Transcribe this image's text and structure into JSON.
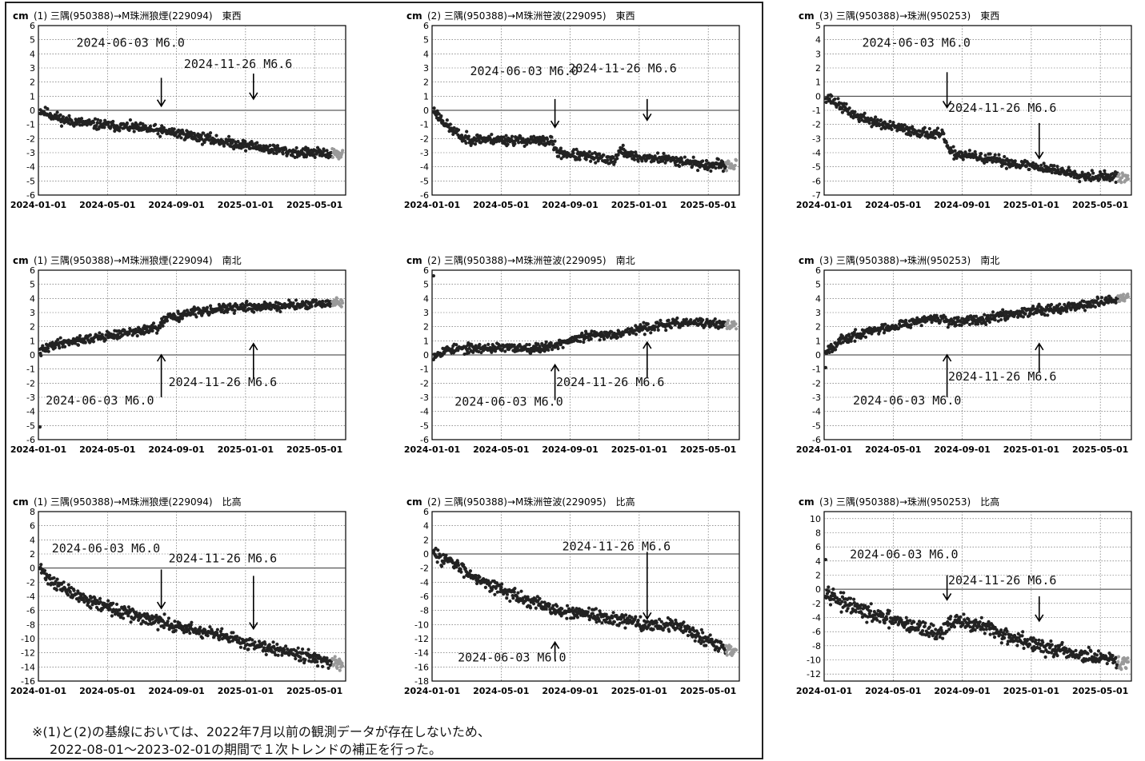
{
  "footnote": {
    "line1": "※(1)と(2)の基線においては、2022年7月以前の観測データが存在しないため、",
    "line2": "2022-08-01～2023-02-01の期間で１次トレンドの補正を行った。"
  },
  "colors": {
    "point": "#222222",
    "recent": "#9a9a9a",
    "grid": "#555555",
    "axis": "#000000"
  },
  "chart_data": [
    {
      "type": "scatter",
      "unit": "cm",
      "title": "(1) 三隅(950388)→M珠洲狼煙(229094)　東西",
      "xlabels": [
        "2024-01-01",
        "2024-05-01",
        "2024-09-01",
        "2025-01-01",
        "2025-05-01"
      ],
      "ylim": [
        -6,
        6
      ],
      "yticks": [
        6,
        5,
        4,
        3,
        2,
        1,
        0,
        -1,
        -2,
        -3,
        -4,
        -5,
        -6
      ],
      "trend": [
        [
          0,
          0
        ],
        [
          0.08,
          -0.7
        ],
        [
          0.18,
          -1.0
        ],
        [
          0.3,
          -1.2
        ],
        [
          0.45,
          -1.6
        ],
        [
          0.6,
          -2.2
        ],
        [
          0.75,
          -2.7
        ],
        [
          0.85,
          -3.0
        ],
        [
          1,
          -3.1
        ]
      ],
      "noise": 0.18,
      "seed": 11,
      "annotations": [
        {
          "label": "2024-06-03 M6.0",
          "x": 0.4,
          "tip": 0.3,
          "len": 2.0,
          "dir": "down",
          "tx": 0.3,
          "ty": 4.5
        },
        {
          "label": "2024-11-26 M6.6",
          "x": 0.7,
          "tip": 0.8,
          "len": 1.8,
          "dir": "down",
          "tx": 0.65,
          "ty": 3.0
        }
      ]
    },
    {
      "type": "scatter",
      "unit": "cm",
      "title": "(2) 三隅(950388)→M珠洲笹波(229095)　東西",
      "xlabels": [
        "2024-01-01",
        "2024-05-01",
        "2024-09-01",
        "2025-01-01",
        "2025-05-01"
      ],
      "ylim": [
        -6,
        6
      ],
      "yticks": [
        6,
        5,
        4,
        3,
        2,
        1,
        0,
        -1,
        -2,
        -3,
        -4,
        -5,
        -6
      ],
      "trend": [
        [
          0,
          0
        ],
        [
          0.05,
          -1.2
        ],
        [
          0.1,
          -2.0
        ],
        [
          0.39,
          -2.2
        ],
        [
          0.41,
          -3.0
        ],
        [
          0.55,
          -3.4
        ],
        [
          0.6,
          -3.5
        ],
        [
          0.62,
          -2.8
        ],
        [
          0.66,
          -3.3
        ],
        [
          0.8,
          -3.5
        ],
        [
          0.9,
          -3.9
        ],
        [
          1,
          -3.9
        ]
      ],
      "noise": 0.18,
      "seed": 23,
      "annotations": [
        {
          "label": "2024-06-03 M6.0",
          "x": 0.4,
          "tip": -1.2,
          "len": 2.0,
          "dir": "down",
          "tx": 0.3,
          "ty": 2.5
        },
        {
          "label": "2024-11-26 M6.6",
          "x": 0.7,
          "tip": -0.7,
          "len": 1.5,
          "dir": "down",
          "tx": 0.62,
          "ty": 2.7
        }
      ]
    },
    {
      "type": "scatter",
      "unit": "cm",
      "title": "(3) 三隅(950388)→珠洲(950253)　東西",
      "xlabels": [
        "2024-01-01",
        "2024-05-01",
        "2024-09-01",
        "2025-01-01",
        "2025-05-01"
      ],
      "ylim": [
        -7,
        5
      ],
      "yticks": [
        5,
        4,
        3,
        2,
        1,
        0,
        -1,
        -2,
        -3,
        -4,
        -5,
        -6,
        -7
      ],
      "trend": [
        [
          0,
          0
        ],
        [
          0.1,
          -1.4
        ],
        [
          0.2,
          -2.1
        ],
        [
          0.3,
          -2.5
        ],
        [
          0.39,
          -2.8
        ],
        [
          0.41,
          -4.0
        ],
        [
          0.55,
          -4.5
        ],
        [
          0.7,
          -5.0
        ],
        [
          0.85,
          -5.6
        ],
        [
          1,
          -5.8
        ]
      ],
      "noise": 0.18,
      "seed": 37,
      "annotations": [
        {
          "label": "2024-06-03 M6.0",
          "x": 0.4,
          "tip": -0.8,
          "len": 2.5,
          "dir": "down",
          "tx": 0.3,
          "ty": 3.5
        },
        {
          "label": "2024-11-26 M6.6",
          "x": 0.7,
          "tip": -4.4,
          "len": 2.5,
          "dir": "down",
          "tx": 0.58,
          "ty": -1.1
        }
      ]
    },
    {
      "type": "scatter",
      "unit": "cm",
      "title": "(1) 三隅(950388)→M珠洲狼煙(229094)　南北",
      "xlabels": [
        "2024-01-01",
        "2024-05-01",
        "2024-09-01",
        "2025-01-01",
        "2025-05-01"
      ],
      "ylim": [
        -6,
        6
      ],
      "yticks": [
        6,
        5,
        4,
        3,
        2,
        1,
        0,
        -1,
        -2,
        -3,
        -4,
        -5,
        -6
      ],
      "trend": [
        [
          0,
          0.2
        ],
        [
          0.05,
          0.8
        ],
        [
          0.15,
          1.1
        ],
        [
          0.3,
          1.6
        ],
        [
          0.39,
          1.9
        ],
        [
          0.42,
          2.6
        ],
        [
          0.55,
          3.2
        ],
        [
          0.7,
          3.4
        ],
        [
          0.85,
          3.5
        ],
        [
          1,
          3.7
        ]
      ],
      "noise": 0.16,
      "seed": 41,
      "outliers": [
        [
          0.0,
          -5.1
        ]
      ],
      "annotations": [
        {
          "label": "2024-06-03 M6.0",
          "x": 0.4,
          "tip": 0.0,
          "len": 3.0,
          "dir": "up",
          "tx": 0.2,
          "ty": -3.5
        },
        {
          "label": "2024-11-26 M6.6",
          "x": 0.7,
          "tip": 0.8,
          "len": 2.5,
          "dir": "up",
          "tx": 0.6,
          "ty": -2.2
        }
      ]
    },
    {
      "type": "scatter",
      "unit": "cm",
      "title": "(2) 三隅(950388)→M珠洲笹波(229095)　南北",
      "xlabels": [
        "2024-01-01",
        "2024-05-01",
        "2024-09-01",
        "2025-01-01",
        "2025-05-01"
      ],
      "ylim": [
        -6,
        6
      ],
      "yticks": [
        6,
        5,
        4,
        3,
        2,
        1,
        0,
        -1,
        -2,
        -3,
        -4,
        -5,
        -6
      ],
      "trend": [
        [
          0,
          0.0
        ],
        [
          0.05,
          0.4
        ],
        [
          0.2,
          0.5
        ],
        [
          0.35,
          0.5
        ],
        [
          0.4,
          0.7
        ],
        [
          0.5,
          1.3
        ],
        [
          0.6,
          1.5
        ],
        [
          0.75,
          2.1
        ],
        [
          0.85,
          2.3
        ],
        [
          1,
          2.1
        ]
      ],
      "noise": 0.16,
      "seed": 53,
      "outliers": [
        [
          0.0,
          5.6
        ]
      ],
      "annotations": [
        {
          "label": "2024-06-03 M6.0",
          "x": 0.4,
          "tip": -0.7,
          "len": 2.5,
          "dir": "up",
          "tx": 0.25,
          "ty": -3.6
        },
        {
          "label": "2024-11-26 M6.6",
          "x": 0.7,
          "tip": 0.9,
          "len": 2.5,
          "dir": "up",
          "tx": 0.58,
          "ty": -2.2
        }
      ]
    },
    {
      "type": "scatter",
      "unit": "cm",
      "title": "(3) 三隅(950388)→珠洲(950253)　南北",
      "xlabels": [
        "2024-01-01",
        "2024-05-01",
        "2024-09-01",
        "2025-01-01",
        "2025-05-01"
      ],
      "ylim": [
        -6,
        6
      ],
      "yticks": [
        6,
        5,
        4,
        3,
        2,
        1,
        0,
        -1,
        -2,
        -3,
        -4,
        -5,
        -6
      ],
      "trend": [
        [
          0,
          0.3
        ],
        [
          0.05,
          1.0
        ],
        [
          0.15,
          1.7
        ],
        [
          0.3,
          2.4
        ],
        [
          0.39,
          2.6
        ],
        [
          0.41,
          2.2
        ],
        [
          0.55,
          2.7
        ],
        [
          0.7,
          3.2
        ],
        [
          0.85,
          3.5
        ],
        [
          1,
          4.1
        ]
      ],
      "noise": 0.17,
      "seed": 67,
      "outliers": [
        [
          0.0,
          -0.9
        ]
      ],
      "annotations": [
        {
          "label": "2024-06-03 M6.0",
          "x": 0.4,
          "tip": 0.0,
          "len": 3.0,
          "dir": "up",
          "tx": 0.27,
          "ty": -3.5
        },
        {
          "label": "2024-11-26 M6.6",
          "x": 0.7,
          "tip": 0.8,
          "len": 2.0,
          "dir": "up",
          "tx": 0.58,
          "ty": -1.8
        }
      ]
    },
    {
      "type": "scatter",
      "unit": "cm",
      "title": "(1) 三隅(950388)→M珠洲狼煙(229094)　比高",
      "xlabels": [
        "2024-01-01",
        "2024-05-01",
        "2024-09-01",
        "2025-01-01",
        "2025-05-01"
      ],
      "ylim": [
        -16,
        8
      ],
      "yticks": [
        8,
        6,
        4,
        2,
        0,
        -2,
        -4,
        -6,
        -8,
        -10,
        -12,
        -14,
        -16
      ],
      "trend": [
        [
          0,
          0
        ],
        [
          0.03,
          -1.5
        ],
        [
          0.1,
          -3.5
        ],
        [
          0.25,
          -6.0
        ],
        [
          0.4,
          -7.7
        ],
        [
          0.55,
          -9.2
        ],
        [
          0.7,
          -10.7
        ],
        [
          0.85,
          -12.0
        ],
        [
          1,
          -14.0
        ]
      ],
      "noise": 0.45,
      "seed": 71,
      "annotations": [
        {
          "label": "2024-06-03 M6.0",
          "x": 0.4,
          "tip": -5.7,
          "len": 5.5,
          "dir": "down",
          "tx": 0.22,
          "ty": 2.2
        },
        {
          "label": "2024-11-26 M6.6",
          "x": 0.7,
          "tip": -8.6,
          "len": 7.5,
          "dir": "down",
          "tx": 0.6,
          "ty": 0.8
        }
      ]
    },
    {
      "type": "scatter",
      "unit": "cm",
      "title": "(2) 三隅(950388)→M珠洲笹波(229095)　比高",
      "xlabels": [
        "2024-01-01",
        "2024-05-01",
        "2024-09-01",
        "2025-01-01",
        "2025-05-01"
      ],
      "ylim": [
        -18,
        6
      ],
      "yticks": [
        6,
        4,
        2,
        0,
        -2,
        -4,
        -6,
        -8,
        -10,
        -12,
        -14,
        -16,
        -18
      ],
      "trend": [
        [
          0,
          0
        ],
        [
          0.05,
          -1.0
        ],
        [
          0.15,
          -3.5
        ],
        [
          0.3,
          -6.5
        ],
        [
          0.4,
          -7.8
        ],
        [
          0.45,
          -8.5
        ],
        [
          0.5,
          -8.5
        ],
        [
          0.7,
          -10.0
        ],
        [
          0.8,
          -10.0
        ],
        [
          0.9,
          -12.0
        ],
        [
          1,
          -14.0
        ]
      ],
      "noise": 0.45,
      "seed": 83,
      "annotations": [
        {
          "label": "2024-06-03 M6.0",
          "x": 0.4,
          "tip": -12.5,
          "len": 2.5,
          "dir": "up",
          "tx": 0.26,
          "ty": -15.2
        },
        {
          "label": "2024-11-26 M6.6",
          "x": 0.7,
          "tip": -9.2,
          "len": 9.5,
          "dir": "down",
          "tx": 0.6,
          "ty": 0.5
        }
      ]
    },
    {
      "type": "scatter",
      "unit": "cm",
      "title": "(3) 三隅(950388)→珠洲(950253)　比高",
      "xlabels": [
        "2024-01-01",
        "2024-05-01",
        "2024-09-01",
        "2025-01-01",
        "2025-05-01"
      ],
      "ylim": [
        -13,
        11
      ],
      "yticks": [
        10,
        8,
        6,
        4,
        2,
        0,
        -2,
        -4,
        -6,
        -8,
        -10,
        -12
      ],
      "trend": [
        [
          0,
          0
        ],
        [
          0.05,
          -1.8
        ],
        [
          0.15,
          -3.6
        ],
        [
          0.25,
          -4.8
        ],
        [
          0.38,
          -6.3
        ],
        [
          0.41,
          -4.6
        ],
        [
          0.5,
          -5.0
        ],
        [
          0.6,
          -6.6
        ],
        [
          0.75,
          -8.6
        ],
        [
          0.9,
          -9.8
        ],
        [
          1,
          -10.6
        ]
      ],
      "noise": 0.55,
      "seed": 97,
      "outliers": [
        [
          0.0,
          4.2
        ]
      ],
      "annotations": [
        {
          "label": "2024-06-03 M6.0",
          "x": 0.4,
          "tip": -1.5,
          "len": 3.5,
          "dir": "down",
          "tx": 0.26,
          "ty": 4.4
        },
        {
          "label": "2024-11-26 M6.6",
          "x": 0.7,
          "tip": -4.5,
          "len": 3.5,
          "dir": "down",
          "tx": 0.58,
          "ty": 0.7
        }
      ]
    }
  ]
}
